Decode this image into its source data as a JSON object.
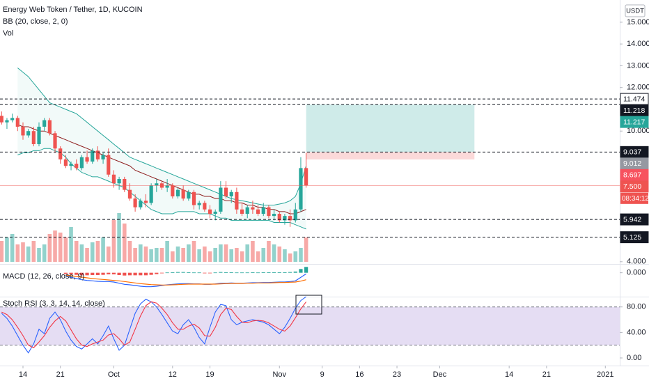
{
  "chart_data": [
    {
      "type": "candlestick",
      "title": "Energy Web Token / Tether, 1D, KUCOIN",
      "indicators": [
        "BB (20, close, 2, 0)",
        "Vol"
      ],
      "currency": "USDT",
      "x": [
        10,
        11,
        12,
        13,
        14,
        15,
        16,
        17,
        18,
        19,
        20,
        21,
        22,
        23,
        24,
        25,
        26,
        27,
        28,
        29,
        30,
        31,
        32,
        33,
        34,
        35,
        36,
        37,
        38,
        39,
        40,
        41,
        42,
        43,
        44,
        45,
        46,
        47,
        48,
        49,
        50,
        51,
        52,
        53,
        54,
        55,
        56,
        57,
        58,
        59,
        60,
        61,
        62,
        63,
        64,
        65,
        66,
        67
      ],
      "open": [
        10.7,
        10.4,
        10.5,
        10.6,
        10.2,
        9.8,
        10.0,
        9.4,
        10.2,
        10.5,
        9.9,
        9.2,
        8.7,
        8.4,
        8.5,
        8.3,
        8.8,
        8.6,
        9.1,
        8.7,
        8.9,
        8.0,
        7.6,
        7.8,
        7.3,
        6.9,
        6.5,
        6.8,
        6.7,
        7.5,
        7.6,
        7.4,
        7.5,
        7.0,
        7.3,
        6.9,
        7.2,
        6.6,
        6.7,
        6.4,
        6.2,
        6.3,
        7.4,
        7.0,
        7.2,
        6.4,
        6.2,
        6.5,
        6.4,
        6.2,
        6.5,
        6.1,
        6.2,
        5.9,
        6.1,
        5.9,
        6.4,
        8.3
      ],
      "high": [
        10.9,
        10.6,
        10.8,
        10.7,
        10.4,
        10.1,
        10.2,
        10.4,
        10.6,
        10.6,
        10.0,
        9.3,
        8.9,
        8.6,
        8.7,
        8.9,
        9.1,
        9.2,
        9.3,
        9.0,
        9.2,
        8.2,
        7.9,
        7.9,
        7.6,
        7.1,
        6.9,
        7.1,
        7.6,
        7.8,
        7.7,
        7.8,
        7.6,
        7.4,
        7.5,
        7.3,
        7.3,
        6.8,
        6.8,
        6.6,
        6.4,
        7.7,
        7.7,
        7.3,
        7.4,
        6.7,
        6.6,
        6.8,
        6.6,
        6.7,
        6.6,
        6.4,
        6.3,
        6.2,
        6.4,
        6.7,
        8.8,
        9.0
      ],
      "low": [
        10.3,
        10.1,
        10.4,
        10.0,
        9.6,
        9.7,
        9.3,
        9.3,
        10.0,
        9.8,
        9.0,
        8.5,
        8.3,
        8.2,
        8.2,
        8.2,
        8.5,
        8.5,
        8.6,
        8.5,
        7.9,
        7.4,
        7.3,
        7.2,
        6.8,
        6.3,
        6.4,
        6.5,
        6.6,
        7.2,
        7.3,
        7.2,
        6.9,
        6.9,
        6.8,
        6.8,
        6.4,
        6.4,
        6.3,
        6.0,
        5.9,
        6.2,
        6.9,
        6.7,
        6.2,
        6.1,
        6.0,
        6.2,
        6.1,
        6.1,
        6.0,
        5.9,
        5.8,
        5.7,
        5.6,
        5.8,
        6.3,
        7.4
      ],
      "close": [
        10.4,
        10.5,
        10.6,
        10.2,
        9.8,
        10.0,
        9.4,
        10.2,
        10.5,
        9.9,
        9.2,
        8.7,
        8.4,
        8.5,
        8.3,
        8.8,
        8.6,
        9.1,
        8.7,
        8.9,
        8.0,
        7.6,
        7.8,
        7.3,
        6.9,
        6.5,
        6.8,
        6.7,
        7.5,
        7.6,
        7.4,
        7.5,
        7.0,
        7.3,
        6.9,
        7.2,
        6.6,
        6.7,
        6.4,
        6.2,
        6.3,
        7.4,
        7.0,
        7.2,
        6.4,
        6.2,
        6.5,
        6.4,
        6.2,
        6.5,
        6.1,
        6.2,
        5.9,
        6.1,
        5.9,
        6.4,
        8.3,
        7.5
      ],
      "volume": [
        30,
        35,
        40,
        25,
        28,
        22,
        30,
        20,
        25,
        40,
        45,
        42,
        35,
        50,
        30,
        25,
        20,
        28,
        30,
        35,
        22,
        60,
        70,
        55,
        30,
        20,
        25,
        22,
        18,
        20,
        20,
        30,
        15,
        22,
        20,
        25,
        30,
        18,
        22,
        15,
        20,
        25,
        25,
        18,
        20,
        15,
        25,
        30,
        15,
        20,
        30,
        25,
        22,
        18,
        12,
        15,
        20,
        35
      ],
      "up_color": "#26a69a",
      "down_color": "#ef5350",
      "series": [
        {
          "color": "#26a69a",
          "values": [
            null,
            null,
            null,
            12.9,
            12.7,
            12.5,
            12.2,
            11.9,
            11.6,
            11.3,
            11.2,
            11.1,
            11.0,
            10.9,
            10.8,
            10.6,
            10.4,
            10.2,
            10.0,
            9.8,
            9.6,
            9.4,
            9.2,
            9.0,
            8.8,
            8.7,
            8.6,
            8.5,
            8.4,
            8.3,
            8.2,
            8.1,
            8.0,
            7.9,
            7.8,
            7.7,
            7.6,
            7.5,
            7.4,
            7.3,
            7.2,
            7.1,
            7.0,
            6.9,
            6.85,
            6.8,
            6.75,
            6.7,
            6.65,
            6.6,
            6.6,
            6.6,
            6.65,
            6.7,
            6.8,
            7.0,
            7.6,
            8.4
          ]
        },
        {
          "color": "#8e1e1e",
          "values": [
            null,
            null,
            null,
            10.3,
            10.2,
            10.2,
            10.1,
            10.0,
            10.0,
            9.9,
            9.8,
            9.7,
            9.6,
            9.5,
            9.4,
            9.3,
            9.2,
            9.1,
            9.0,
            8.9,
            8.8,
            8.7,
            8.6,
            8.5,
            8.4,
            8.2,
            8.1,
            8.0,
            7.9,
            7.8,
            7.7,
            7.6,
            7.5,
            7.4,
            7.3,
            7.2,
            7.1,
            7.1,
            7.0,
            7.0,
            6.9,
            6.9,
            6.8,
            6.8,
            6.7,
            6.7,
            6.6,
            6.6,
            6.5,
            6.5,
            6.4,
            6.4,
            6.3,
            6.3,
            6.2,
            6.2,
            6.3,
            6.4
          ]
        },
        {
          "color": "#26a69a",
          "values": [
            null,
            null,
            null,
            8.9,
            9.0,
            9.0,
            9.1,
            9.1,
            9.2,
            9.2,
            9.1,
            9.0,
            8.8,
            8.5,
            8.3,
            8.1,
            8.0,
            7.9,
            7.9,
            7.8,
            7.7,
            7.6,
            7.5,
            7.4,
            7.2,
            7.0,
            6.8,
            6.6,
            6.4,
            6.3,
            6.2,
            6.2,
            6.2,
            6.3,
            6.3,
            6.3,
            6.3,
            6.2,
            6.2,
            6.2,
            6.1,
            6.0,
            6.0,
            5.9,
            5.9,
            5.9,
            5.9,
            5.9,
            5.9,
            5.9,
            5.9,
            5.8,
            5.8,
            5.8,
            5.8,
            5.7,
            5.6,
            5.5
          ]
        }
      ],
      "band_fill": "#26a69a",
      "xlim": [
        9.7,
        125.7
      ],
      "xticks": [
        14,
        21,
        {
          "value": 31,
          "label": "Oct"
        },
        {
          "value": 42,
          "label": "12"
        },
        {
          "value": 49,
          "label": "19"
        },
        {
          "value": 62,
          "label": "Nov"
        },
        {
          "value": 70,
          "label": "9"
        },
        {
          "value": 77,
          "label": "16"
        },
        {
          "value": 84,
          "label": "23"
        },
        {
          "value": 92,
          "label": "Dec"
        },
        {
          "value": 105,
          "label": "14"
        },
        {
          "value": 112,
          "label": "21"
        },
        {
          "value": 123,
          "label": "2021"
        }
      ],
      "ylim": [
        3.93,
        16.02
      ],
      "yticks": [
        {
          "value": 4,
          "label": "4.000"
        },
        {
          "value": 10,
          "label": "10.000"
        },
        {
          "value": 12,
          "label": "12.000"
        },
        {
          "value": 13,
          "label": "13.000"
        },
        {
          "value": 14,
          "label": "14.000"
        },
        {
          "value": 15,
          "label": "15.000"
        }
      ],
      "position": {
        "x": [
          67,
          98.5
        ],
        "entry": 9.037,
        "target": 11.217,
        "stop": 8.697
      },
      "price_lines": [
        {
          "value": 11.474,
          "bg": "#ffffff",
          "fg": "#131722",
          "line": "dashed"
        },
        {
          "value": 11.218,
          "bg": "#131722",
          "fg": "#ffffff",
          "line": "dashed"
        },
        {
          "value": 11.217,
          "bg": "#26a69a",
          "fg": "#ffffff"
        },
        {
          "value": 9.037,
          "bg": "#131722",
          "fg": "#ffffff",
          "line": "dashed"
        },
        {
          "value": 9.012,
          "bg": "#9598a1",
          "fg": "#ffffff"
        },
        {
          "value": 8.697,
          "bg": "#f7525f",
          "fg": "#ffffff"
        },
        {
          "value": 7.5,
          "label": "7.500",
          "countdown": "08:34:12",
          "bg": "#ef5350",
          "fg": "#ffffff",
          "line": "solid"
        },
        {
          "value": 5.942,
          "bg": "#131722",
          "fg": "#ffffff",
          "line": "dashed"
        },
        {
          "value": 5.125,
          "bg": "#131722",
          "fg": "#ffffff",
          "line": "dashed"
        }
      ]
    },
    {
      "type": "macd",
      "title": "MACD (12, 26, close, 9)",
      "series": [
        {
          "color": "#2962ff",
          "values": [
            null,
            null,
            null,
            null,
            null,
            null,
            null,
            null,
            null,
            null,
            null,
            null,
            -0.15,
            -0.2,
            -0.25,
            -0.3,
            -0.33,
            -0.35,
            -0.37,
            -0.38,
            -0.38,
            -0.4,
            -0.45,
            -0.5,
            -0.52,
            -0.55,
            -0.58,
            -0.6,
            -0.6,
            -0.58,
            -0.55,
            -0.52,
            -0.5,
            -0.48,
            -0.47,
            -0.47,
            -0.48,
            -0.48,
            -0.5,
            -0.5,
            -0.48,
            -0.45,
            -0.45,
            -0.44,
            -0.45,
            -0.45,
            -0.44,
            -0.43,
            -0.43,
            -0.42,
            -0.42,
            -0.41,
            -0.4,
            -0.4,
            -0.38,
            -0.35,
            -0.2,
            -0.05
          ]
        },
        {
          "color": "#ff6d00",
          "values": [
            null,
            null,
            null,
            null,
            null,
            null,
            null,
            null,
            null,
            null,
            null,
            null,
            -0.1,
            -0.13,
            -0.16,
            -0.19,
            -0.22,
            -0.25,
            -0.27,
            -0.29,
            -0.31,
            -0.33,
            -0.35,
            -0.38,
            -0.41,
            -0.44,
            -0.47,
            -0.49,
            -0.51,
            -0.52,
            -0.53,
            -0.53,
            -0.52,
            -0.51,
            -0.5,
            -0.49,
            -0.49,
            -0.49,
            -0.49,
            -0.49,
            -0.49,
            -0.48,
            -0.47,
            -0.46,
            -0.46,
            -0.46,
            -0.45,
            -0.45,
            -0.44,
            -0.44,
            -0.44,
            -0.43,
            -0.42,
            -0.42,
            -0.41,
            -0.4,
            -0.36,
            -0.3
          ]
        }
      ],
      "histogram": [
        null,
        null,
        null,
        null,
        null,
        null,
        null,
        null,
        null,
        null,
        null,
        null,
        -0.05,
        -0.07,
        -0.09,
        -0.11,
        -0.11,
        -0.1,
        -0.1,
        -0.09,
        -0.07,
        -0.07,
        -0.1,
        -0.12,
        -0.11,
        -0.11,
        -0.11,
        -0.11,
        -0.09,
        -0.06,
        -0.02,
        0.01,
        0.02,
        0.03,
        0.03,
        0.02,
        0.01,
        0.01,
        -0.01,
        -0.01,
        0.01,
        0.03,
        0.02,
        0.02,
        0.01,
        0.01,
        0.01,
        0.02,
        0.01,
        0.02,
        0.02,
        0.02,
        0.02,
        0.02,
        0.03,
        0.05,
        0.16,
        0.25
      ],
      "ylim": [
        -1,
        0.35
      ],
      "yticks": [
        {
          "value": 0,
          "label": "0.000"
        }
      ]
    },
    {
      "type": "stoch",
      "title": "Stoch RSI (3, 3, 14, 14, close)",
      "series": [
        {
          "color": "#2962ff",
          "values": [
            70,
            62,
            50,
            35,
            20,
            8,
            22,
            45,
            38,
            62,
            72,
            60,
            42,
            28,
            18,
            14,
            22,
            30,
            22,
            35,
            50,
            30,
            12,
            20,
            45,
            70,
            85,
            92,
            88,
            80,
            68,
            55,
            42,
            38,
            52,
            60,
            48,
            32,
            22,
            48,
            72,
            84,
            82,
            60,
            52,
            56,
            58,
            60,
            58,
            56,
            52,
            45,
            38,
            48,
            62,
            78,
            90,
            96
          ]
        },
        {
          "color": "#f23645",
          "values": [
            72,
            68,
            60,
            48,
            35,
            20,
            16,
            25,
            35,
            48,
            58,
            65,
            58,
            44,
            30,
            20,
            18,
            22,
            25,
            28,
            36,
            38,
            30,
            20,
            25,
            45,
            66,
            82,
            88,
            86,
            78,
            68,
            55,
            45,
            45,
            50,
            53,
            47,
            35,
            34,
            48,
            68,
            78,
            76,
            65,
            56,
            55,
            58,
            59,
            58,
            55,
            50,
            45,
            42,
            50,
            63,
            77,
            88
          ]
        }
      ],
      "band": [
        20,
        80
      ],
      "ylim": [
        -12,
        95
      ],
      "yticks": [
        {
          "value": 0,
          "label": "0.00"
        },
        {
          "value": 40,
          "label": "40.00"
        },
        {
          "value": 80,
          "label": "80.00"
        }
      ]
    }
  ]
}
